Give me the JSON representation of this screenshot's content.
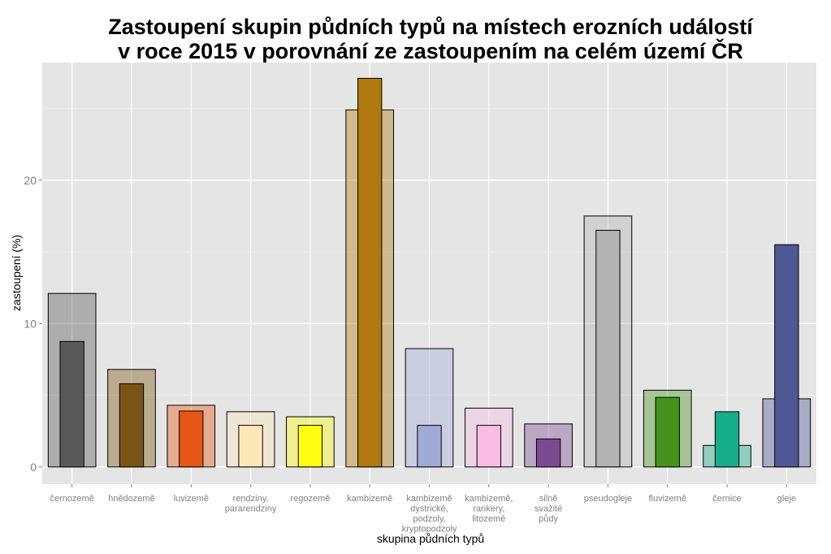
{
  "chart_data": {
    "type": "bar",
    "title_lines": [
      "Zastoupení skupin půdních typů na místech erozních událostí",
      "v roce 2015 v porovnání ze zastoupením na celém území ČR"
    ],
    "xlabel": "skupina půdních typů",
    "ylabel": "zastoupení (%)",
    "ylim": [
      -1.2,
      28.2
    ],
    "yticks": [
      0,
      10,
      20
    ],
    "grid": true,
    "categories": [
      [
        "černozemě"
      ],
      [
        "hnědozemě"
      ],
      [
        "luvizemě"
      ],
      [
        "rendziny,",
        "pararendziny"
      ],
      [
        "regozemě"
      ],
      [
        "kambizemě"
      ],
      [
        "kambizemě",
        "dystrické,",
        "podzoly,",
        "kryptopodzoly"
      ],
      [
        "kambizemě,",
        "rankery,",
        "litozemě"
      ],
      [
        "silně",
        "svažité",
        "půdy"
      ],
      [
        "pseudogleje"
      ],
      [
        "fluvizemě"
      ],
      [
        "černice"
      ],
      [
        "gleje"
      ]
    ],
    "series": [
      {
        "values": [
          12.1,
          6.8,
          4.3,
          3.85,
          3.5,
          24.9,
          8.25,
          4.1,
          3.0,
          17.5,
          5.35,
          1.5,
          4.75
        ]
      },
      {
        "values": [
          8.75,
          5.8,
          3.9,
          2.9,
          2.9,
          27.1,
          2.9,
          2.9,
          1.95,
          16.5,
          4.85,
          3.85,
          15.5
        ]
      }
    ],
    "colors": [
      "#595959",
      "#7a5414",
      "#e85615",
      "#fce7b6",
      "#ffff10",
      "#b07a0e",
      "#9faad7",
      "#fbbce4",
      "#7b4a90",
      "#b3b3b3",
      "#45921c",
      "#15ad8a",
      "#4e5894"
    ],
    "wide_bar_opacity": 0.4
  }
}
